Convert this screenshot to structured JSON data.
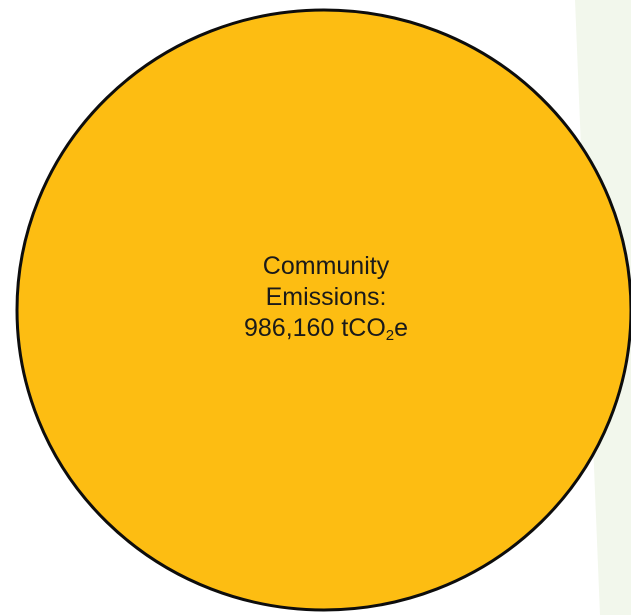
{
  "colors": {
    "background": "#ffffff",
    "accent_band": "#f2f7ec",
    "circle_fill": "#fdbd12",
    "circle_stroke": "#0d0d0d",
    "text": "#1a1a1a"
  },
  "circle": {
    "label_line1": "Community",
    "label_line2": "Emissions:",
    "value": "986,160",
    "unit_prefix": "tCO",
    "unit_subscript": "2",
    "unit_suffix": "e"
  }
}
